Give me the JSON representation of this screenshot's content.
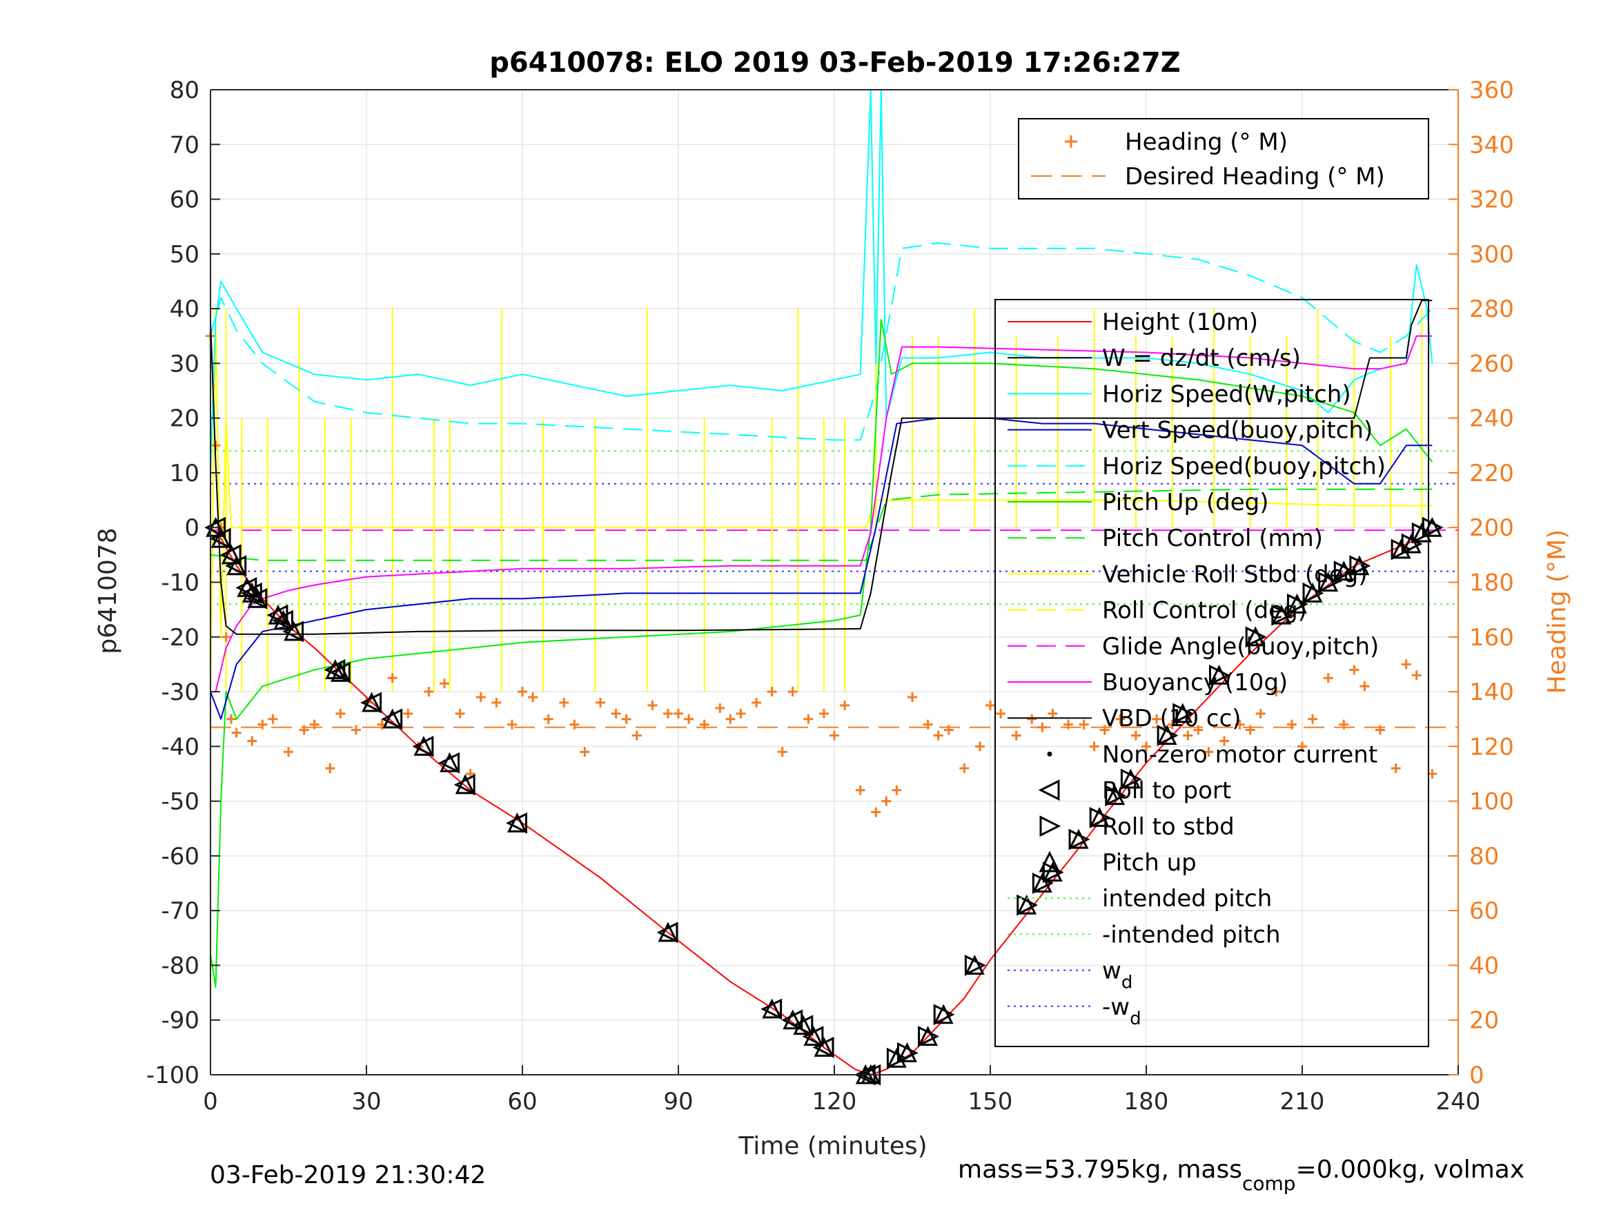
{
  "chart_data": {
    "type": "line",
    "title": "p6410078: ELO 2019 03-Feb-2019 17:26:27Z",
    "xlabel": "Time (minutes)",
    "ylabel_left": "p6410078",
    "ylabel_right": "Heading (°M)",
    "xlim": [
      0,
      240
    ],
    "ylim_left": [
      -100,
      80
    ],
    "ylim_right": [
      0,
      360
    ],
    "x_ticks": [
      "0",
      "30",
      "60",
      "90",
      "120",
      "150",
      "180",
      "210",
      "240"
    ],
    "y_ticks_left": [
      "80",
      "70",
      "60",
      "50",
      "40",
      "30",
      "20",
      "10",
      "0",
      "-10",
      "-20",
      "-30",
      "-40",
      "-50",
      "-60",
      "-70",
      "-80",
      "-90",
      "-100"
    ],
    "y_ticks_right": [
      "360",
      "340",
      "320",
      "300",
      "280",
      "260",
      "240",
      "220",
      "200",
      "180",
      "160",
      "140",
      "120",
      "100",
      "80",
      "60",
      "40",
      "20",
      "0"
    ],
    "grid": true,
    "colors": {
      "height": "#ff0000",
      "w": "#000000",
      "horiz_speed": "#00ffff",
      "vert_speed": "#0000cc",
      "pitch": "#00ee00",
      "roll": "#ffff00",
      "glide": "#ff00ff",
      "heading": "#f47c20",
      "intended_pitch": "#33ff33",
      "w_d": "#3333ff"
    },
    "legend_heading": [
      {
        "name": "Heading (° M)",
        "style": "marker-plus"
      },
      {
        "name": "Desired Heading (° M)",
        "style": "dash"
      }
    ],
    "legend_main": [
      {
        "name": "Height (10m)",
        "style": "solid",
        "color": "#ff0000"
      },
      {
        "name": "W = dz/dt (cm/s)",
        "style": "solid",
        "color": "#000000"
      },
      {
        "name": "Horiz Speed(W,pitch)",
        "style": "solid",
        "color": "#00ffff"
      },
      {
        "name": "Vert Speed(buoy,pitch)",
        "style": "solid",
        "color": "#0000cc"
      },
      {
        "name": "Horiz Speed(buoy,pitch)",
        "style": "dash",
        "color": "#00ffff"
      },
      {
        "name": "Pitch Up (deg)",
        "style": "solid",
        "color": "#00ee00"
      },
      {
        "name": "Pitch Control (mm)",
        "style": "dash",
        "color": "#00ee00"
      },
      {
        "name": "Vehicle Roll Stbd (deg)",
        "style": "solid",
        "color": "#ffff00"
      },
      {
        "name": "Roll Control (deg)",
        "style": "dash",
        "color": "#ffff00"
      },
      {
        "name": "Glide Angle(buoy,pitch)",
        "style": "dash",
        "color": "#ff00ff"
      },
      {
        "name": "Buoyancy (10g)",
        "style": "solid",
        "color": "#ff00ff"
      },
      {
        "name": "VBD (10 cc)",
        "style": "solid",
        "color": "#000000"
      },
      {
        "name": "Non-zero motor current",
        "style": "dot",
        "color": "#000000"
      },
      {
        "name": "Roll to port",
        "style": "tri-left",
        "color": "#000000"
      },
      {
        "name": "Roll to stbd",
        "style": "tri-right",
        "color": "#000000"
      },
      {
        "name": "Pitch up",
        "style": "tri-up",
        "color": "#000000"
      },
      {
        "name": "intended pitch",
        "style": "dotted",
        "color": "#33ff33"
      },
      {
        "name": "-intended pitch",
        "style": "dotted",
        "color": "#33ff33"
      },
      {
        "name": "w",
        "sub": "d",
        "style": "dotted",
        "color": "#3333ff"
      },
      {
        "name": "-w",
        "sub": "d",
        "style": "dotted",
        "color": "#3333ff"
      }
    ],
    "height": {
      "x": [
        0,
        2,
        5,
        10,
        15,
        20,
        30,
        40,
        50,
        60,
        75,
        88,
        100,
        110,
        118,
        124,
        127,
        130,
        135,
        140,
        145,
        150,
        160,
        170,
        180,
        190,
        200,
        210,
        220,
        230,
        235
      ],
      "y": [
        0,
        -2,
        -7,
        -13,
        -18,
        -22,
        -31,
        -40,
        -48,
        -54,
        -64,
        -74,
        -83,
        -89,
        -95,
        -99,
        -100,
        -99,
        -96,
        -91,
        -86,
        -79,
        -67,
        -55,
        -43,
        -33,
        -23,
        -14,
        -7,
        -3,
        -1
      ]
    },
    "w": {
      "x": [
        0,
        1,
        2,
        3,
        5,
        10,
        20,
        40,
        60,
        90,
        125,
        127,
        131,
        133,
        180,
        220,
        223,
        230,
        231,
        233,
        235
      ],
      "y": [
        38,
        12,
        -10,
        -18,
        -19.5,
        -19.5,
        -19.5,
        -19,
        -18.8,
        -18.8,
        -18.5,
        -12,
        10,
        20,
        20,
        20,
        31,
        31,
        37,
        41.5,
        41.5
      ]
    },
    "horiz_speed": {
      "x": [
        0,
        1,
        2,
        5,
        10,
        20,
        30,
        40,
        50,
        60,
        70,
        80,
        90,
        100,
        110,
        120,
        125,
        127,
        128,
        129,
        130,
        133,
        140,
        150,
        160,
        170,
        180,
        190,
        200,
        210,
        215,
        220,
        225,
        230,
        232,
        234,
        235
      ],
      "y": [
        10,
        38,
        45,
        40,
        32,
        28,
        27,
        28,
        26,
        28,
        26,
        24,
        25,
        26,
        25,
        27,
        28,
        80,
        30,
        80,
        20,
        31,
        31,
        32,
        31,
        31,
        31,
        30,
        28,
        25,
        21,
        27,
        29,
        30,
        48,
        40,
        30
      ]
    },
    "vert_speed": {
      "x": [
        0,
        2,
        5,
        10,
        20,
        30,
        40,
        50,
        60,
        80,
        100,
        120,
        125,
        128,
        132,
        140,
        150,
        160,
        170,
        180,
        190,
        200,
        210,
        220,
        225,
        230,
        235
      ],
      "y": [
        -30,
        -35,
        -25,
        -19,
        -17,
        -15,
        -14,
        -13,
        -13,
        -12,
        -12,
        -12,
        -12,
        0,
        19,
        20,
        20,
        19,
        19,
        18,
        17,
        16,
        15,
        8,
        8,
        15,
        15
      ]
    },
    "horiz_speed_buoy": {
      "x": [
        0,
        2,
        5,
        10,
        20,
        30,
        40,
        50,
        60,
        80,
        100,
        120,
        125,
        128,
        133,
        140,
        150,
        160,
        170,
        180,
        190,
        200,
        210,
        220,
        225,
        230,
        235
      ],
      "y": [
        35,
        42,
        36,
        30,
        23,
        21,
        20,
        19,
        19,
        18,
        17,
        16,
        16,
        25,
        51,
        52,
        51,
        51,
        51,
        50,
        49,
        46,
        42,
        34,
        32,
        35,
        40
      ]
    },
    "pitch": {
      "x": [
        0,
        1,
        2,
        3,
        5,
        10,
        20,
        30,
        40,
        60,
        80,
        100,
        120,
        125,
        127,
        129,
        131,
        135,
        150,
        170,
        190,
        210,
        220,
        225,
        230,
        235
      ],
      "y": [
        -78,
        -84,
        -50,
        -30,
        -35,
        -29,
        -26,
        -24,
        -23,
        -21,
        -20,
        -19,
        -17,
        -16,
        0,
        38,
        28,
        30,
        30,
        29,
        27,
        24,
        21,
        15,
        18,
        12
      ]
    },
    "pitch_control": {
      "x": [
        0,
        10,
        60,
        120,
        126,
        130,
        140,
        200,
        235
      ],
      "y": [
        -5,
        -6,
        -6,
        -6,
        -6,
        5,
        6,
        7,
        7
      ]
    },
    "roll": {
      "x": [
        0,
        1,
        2,
        3,
        4,
        10,
        40,
        80,
        120,
        126,
        128,
        140,
        180,
        220,
        235
      ],
      "y": [
        -30,
        40,
        -20,
        20,
        0,
        0,
        0,
        0,
        0,
        0,
        5,
        5,
        5,
        4,
        4
      ]
    },
    "roll_spikes_x": [
      3,
      6,
      11,
      17,
      22,
      27,
      35,
      43,
      46,
      56,
      64,
      74,
      84,
      95,
      108,
      113,
      118,
      122,
      128,
      135,
      140,
      147,
      155,
      163,
      170,
      178,
      185,
      193,
      200,
      207,
      213,
      220,
      227,
      233
    ],
    "glide_angle": {
      "x": [
        0,
        240
      ],
      "y": [
        -0.5,
        -0.5
      ]
    },
    "buoyancy": {
      "x": [
        0,
        1,
        3,
        5,
        8,
        10,
        15,
        20,
        30,
        40,
        50,
        60,
        80,
        100,
        120,
        125,
        127,
        130,
        133,
        140,
        160,
        180,
        200,
        210,
        220,
        225,
        230,
        232,
        235
      ],
      "y": [
        -30,
        -30,
        -22,
        -18,
        -14,
        -13,
        -11.5,
        -10.5,
        -9,
        -8.5,
        -8,
        -7.5,
        -7.5,
        -7,
        -7,
        -7,
        -1,
        20,
        33,
        33,
        32.5,
        32,
        31,
        30,
        29,
        29,
        30,
        35,
        35
      ]
    },
    "intended_pitch": 14,
    "w_d": 8,
    "desired_heading": 127,
    "heading": {
      "x": [
        0,
        1,
        2,
        3,
        4,
        5,
        8,
        10,
        12,
        15,
        18,
        20,
        23,
        25,
        28,
        30,
        33,
        35,
        38,
        40,
        42,
        45,
        48,
        50,
        52,
        55,
        58,
        60,
        62,
        65,
        68,
        70,
        72,
        75,
        78,
        80,
        82,
        85,
        88,
        90,
        92,
        95,
        98,
        100,
        102,
        105,
        108,
        110,
        112,
        115,
        118,
        120,
        122,
        125,
        128,
        130,
        132,
        135,
        138,
        140,
        142,
        145,
        148,
        150,
        152,
        155,
        158,
        160,
        162,
        165,
        168,
        170,
        172,
        175,
        178,
        180,
        182,
        185,
        188,
        190,
        192,
        195,
        198,
        200,
        202,
        205,
        208,
        210,
        212,
        215,
        218,
        220,
        222,
        225,
        228,
        230,
        232,
        235
      ],
      "y": [
        270,
        230,
        200,
        160,
        130,
        125,
        122,
        128,
        130,
        118,
        126,
        128,
        112,
        132,
        126,
        136,
        128,
        145,
        132,
        120,
        140,
        143,
        132,
        110,
        138,
        136,
        128,
        140,
        138,
        130,
        136,
        128,
        118,
        136,
        132,
        130,
        124,
        135,
        132,
        132,
        130,
        128,
        134,
        130,
        132,
        136,
        140,
        118,
        140,
        130,
        132,
        124,
        135,
        104,
        96,
        100,
        104,
        138,
        128,
        124,
        126,
        112,
        120,
        135,
        132,
        124,
        130,
        127,
        132,
        128,
        128,
        120,
        126,
        130,
        124,
        120,
        130,
        128,
        124,
        126,
        118,
        122,
        128,
        126,
        132,
        140,
        128,
        120,
        130,
        145,
        128,
        148,
        142,
        126,
        112,
        150,
        146,
        110
      ]
    },
    "roll_port_markers": [
      [
        1,
        0
      ],
      [
        2,
        -2
      ],
      [
        4,
        -5
      ],
      [
        5,
        -7
      ],
      [
        7,
        -11
      ],
      [
        8,
        -12
      ],
      [
        9,
        -13
      ],
      [
        13,
        -16
      ],
      [
        14,
        -17
      ],
      [
        16,
        -19
      ],
      [
        24,
        -26
      ],
      [
        25,
        -26.5
      ],
      [
        31,
        -32
      ],
      [
        35,
        -35
      ],
      [
        41,
        -40
      ],
      [
        46,
        -43
      ],
      [
        49,
        -47
      ],
      [
        59,
        -54
      ],
      [
        88,
        -74
      ],
      [
        108,
        -88
      ],
      [
        112,
        -90
      ],
      [
        114,
        -91
      ],
      [
        116,
        -93
      ],
      [
        118,
        -95
      ],
      [
        126,
        -100
      ],
      [
        127,
        -100
      ]
    ],
    "roll_stbd_markers": [
      [
        132,
        -97
      ],
      [
        134,
        -96
      ],
      [
        138,
        -93
      ],
      [
        141,
        -89
      ],
      [
        147,
        -80
      ],
      [
        157,
        -69
      ],
      [
        160,
        -65
      ],
      [
        162,
        -63
      ],
      [
        167,
        -57
      ],
      [
        171,
        -53
      ],
      [
        174,
        -49
      ],
      [
        177,
        -46
      ],
      [
        184,
        -38
      ],
      [
        187,
        -34
      ],
      [
        194,
        -27
      ],
      [
        201,
        -20
      ],
      [
        206,
        -16
      ],
      [
        209,
        -14
      ],
      [
        212,
        -12
      ],
      [
        215,
        -10
      ],
      [
        218,
        -8
      ],
      [
        221,
        -7
      ],
      [
        229,
        -4
      ],
      [
        231,
        -3
      ],
      [
        233,
        -1
      ],
      [
        235,
        0
      ]
    ],
    "annotations": {
      "timestamp": "03-Feb-2019 21:30:42",
      "mass_prefix": "mass=53.795kg, mass",
      "mass_sub": "comp",
      "mass_suffix": "=0.000kg, volmax"
    }
  }
}
